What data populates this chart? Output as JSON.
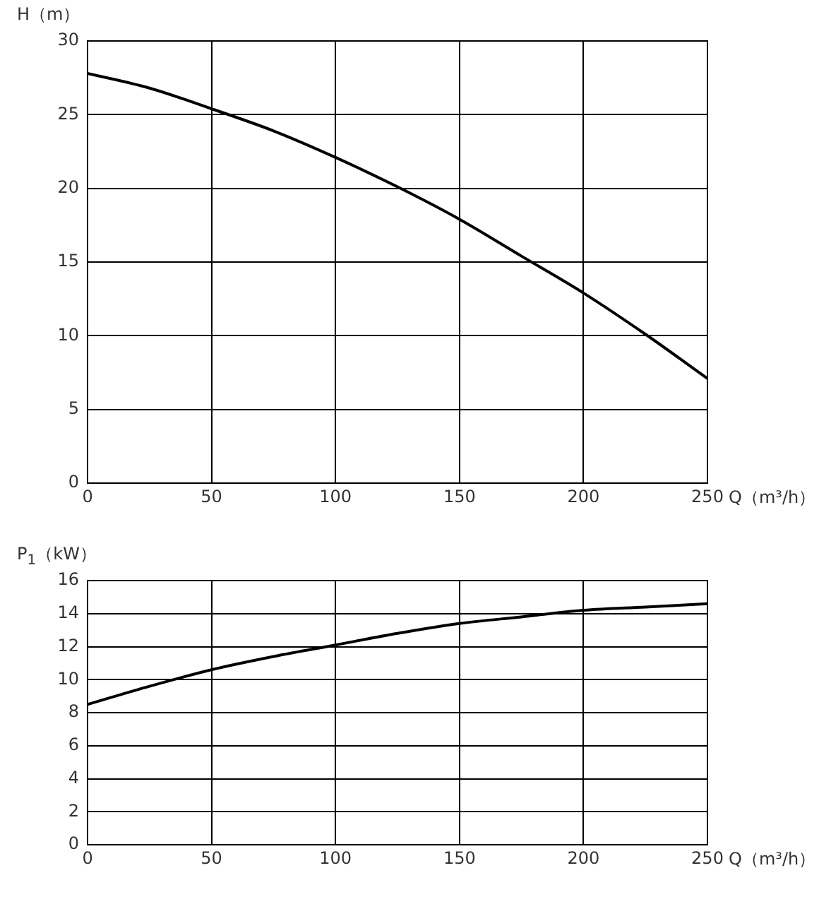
{
  "chart_data": [
    {
      "type": "line",
      "ylabel": "H（m）",
      "xlabel": "Q（m³/h）",
      "xlim": [
        0,
        250
      ],
      "xticks": [
        0,
        50,
        100,
        150,
        200,
        250
      ],
      "ylim": [
        0,
        30
      ],
      "yticks": [
        0,
        5,
        10,
        15,
        20,
        25,
        30
      ],
      "grid": true,
      "marker": "none",
      "line_style": "solid",
      "x": [
        0,
        25,
        50,
        75,
        100,
        125,
        150,
        175,
        200,
        225,
        250
      ],
      "series": [
        {
          "color": "#000000",
          "values": [
            27.8,
            26.8,
            25.4,
            23.9,
            22.1,
            20.1,
            17.9,
            15.4,
            12.9,
            10.1,
            7.1
          ]
        }
      ]
    },
    {
      "type": "line",
      "ylabel": "P$_{1}$（kW）",
      "xlabel": "Q（m³/h）",
      "xlim": [
        0,
        250
      ],
      "xticks": [
        0,
        50,
        100,
        150,
        200,
        250
      ],
      "ylim": [
        0,
        16
      ],
      "yticks": [
        0,
        2,
        4,
        6,
        8,
        10,
        12,
        14,
        16
      ],
      "grid": true,
      "marker": "none",
      "line_style": "solid",
      "x": [
        0,
        25,
        50,
        75,
        100,
        125,
        150,
        175,
        200,
        225,
        250
      ],
      "series": [
        {
          "color": "#000000",
          "values": [
            8.5,
            9.6,
            10.6,
            11.4,
            12.1,
            12.8,
            13.4,
            13.8,
            14.2,
            14.4,
            14.6
          ]
        }
      ]
    }
  ]
}
